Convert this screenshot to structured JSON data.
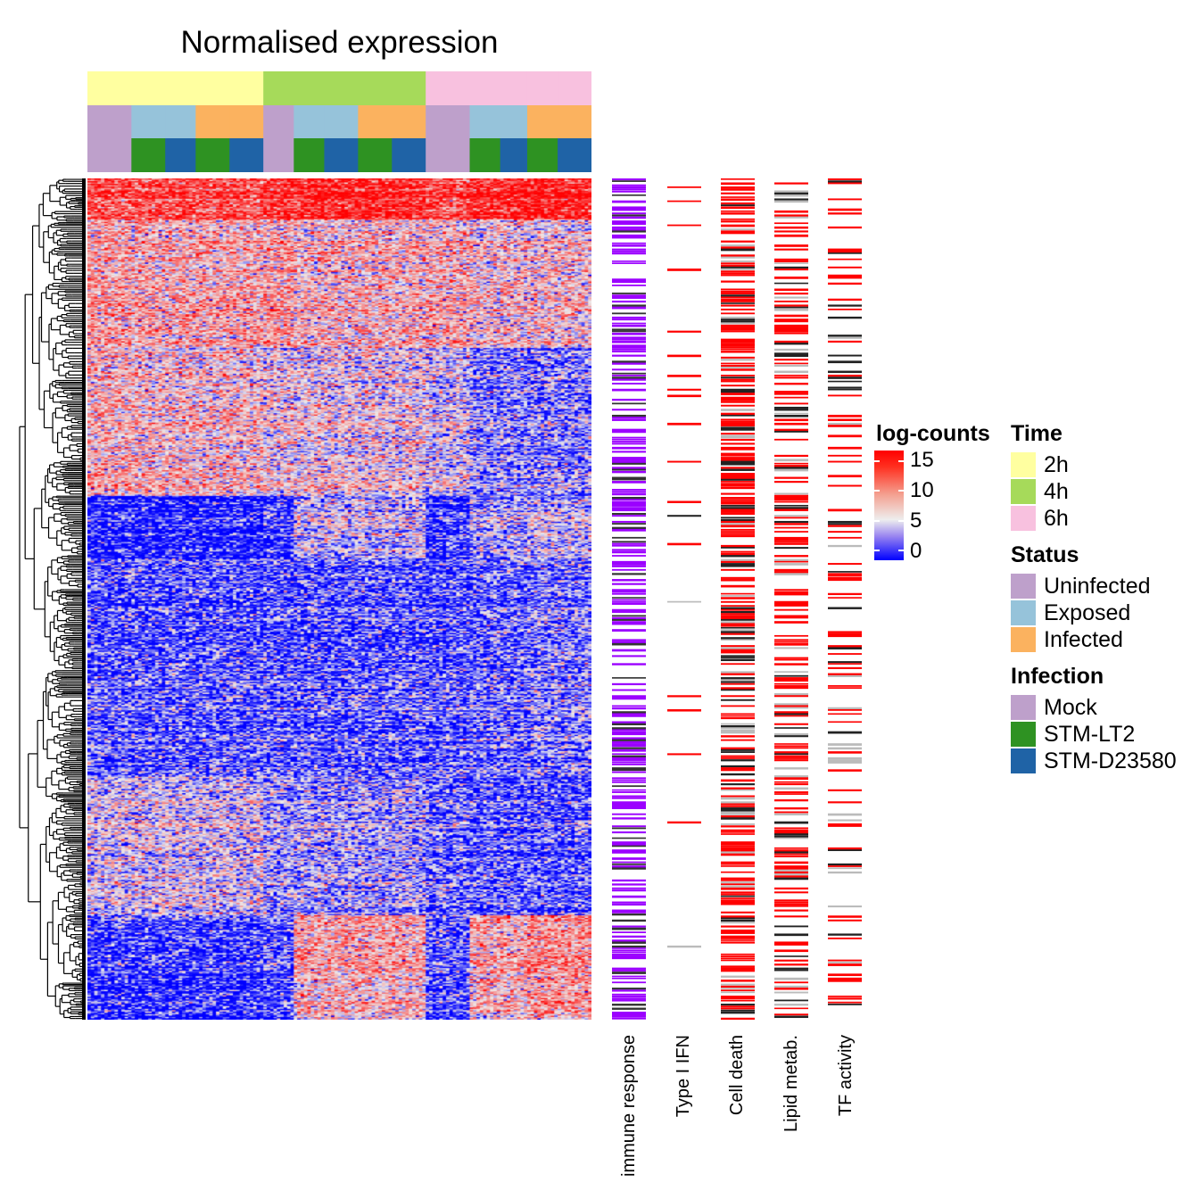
{
  "chart_data": {
    "type": "heatmap",
    "title": "Normalised expression",
    "color_scale": {
      "title": "log-counts",
      "ticks": [
        "15",
        "10",
        "5",
        "0"
      ],
      "range": [
        0,
        15
      ],
      "low": "#0000ff",
      "mid": "#eeeeee",
      "high": "#ff0000"
    },
    "column_groups": [
      {
        "time": "2h",
        "status": "Uninfected",
        "infection": "Mock",
        "n": 13
      },
      {
        "time": "2h",
        "status": "Exposed",
        "infection": "STM-LT2",
        "n": 10
      },
      {
        "time": "2h",
        "status": "Exposed",
        "infection": "STM-D23580",
        "n": 9
      },
      {
        "time": "2h",
        "status": "Infected",
        "infection": "STM-LT2",
        "n": 10
      },
      {
        "time": "2h",
        "status": "Infected",
        "infection": "STM-D23580",
        "n": 10
      },
      {
        "time": "4h",
        "status": "Uninfected",
        "infection": "Mock",
        "n": 9
      },
      {
        "time": "4h",
        "status": "Exposed",
        "infection": "STM-LT2",
        "n": 9
      },
      {
        "time": "4h",
        "status": "Exposed",
        "infection": "STM-D23580",
        "n": 10
      },
      {
        "time": "4h",
        "status": "Infected",
        "infection": "STM-LT2",
        "n": 10
      },
      {
        "time": "4h",
        "status": "Infected",
        "infection": "STM-D23580",
        "n": 10
      },
      {
        "time": "6h",
        "status": "Uninfected",
        "infection": "Mock",
        "n": 13
      },
      {
        "time": "6h",
        "status": "Exposed",
        "infection": "STM-LT2",
        "n": 9
      },
      {
        "time": "6h",
        "status": "Exposed",
        "infection": "STM-D23580",
        "n": 8
      },
      {
        "time": "6h",
        "status": "Infected",
        "infection": "STM-LT2",
        "n": 9
      },
      {
        "time": "6h",
        "status": "Infected",
        "infection": "STM-D23580",
        "n": 10
      }
    ],
    "row_clusters_mean_logcounts": {
      "order": [
        "2h Uninfected",
        "2h Exposed",
        "2h Infected",
        "4h Uninfected",
        "4h Exposed",
        "4h Infected",
        "6h Uninfected",
        "6h Exposed",
        "6h Infected"
      ],
      "clusters": [
        {
          "share": 0.048,
          "means": [
            12,
            12,
            12,
            13,
            14,
            14,
            12,
            14,
            14
          ]
        },
        {
          "share": 0.154,
          "means": [
            8.5,
            8,
            8,
            8.5,
            7.5,
            7.5,
            8,
            7,
            7
          ]
        },
        {
          "share": 0.175,
          "means": [
            7.5,
            7,
            7,
            6,
            6,
            6,
            5,
            3,
            3
          ]
        },
        {
          "share": 0.074,
          "means": [
            0.3,
            0.3,
            0.3,
            1,
            5,
            5,
            1,
            4,
            5
          ]
        },
        {
          "share": 0.26,
          "means": [
            2,
            2,
            2,
            2,
            2,
            2,
            2,
            2.5,
            3
          ]
        },
        {
          "share": 0.164,
          "means": [
            5.5,
            5.5,
            5.5,
            4,
            4,
            4,
            2.5,
            2,
            2
          ]
        },
        {
          "share": 0.125,
          "means": [
            1,
            1,
            1,
            2,
            8,
            8,
            2,
            8,
            9
          ]
        }
      ]
    },
    "row_annotations": [
      {
        "label": "immune response",
        "color": "#9b00ff",
        "density": 0.55
      },
      {
        "label": "Type I IFN",
        "color": "#ff0000",
        "density": 0.04
      },
      {
        "label": "Cell death",
        "color": "#ff0000",
        "density": 0.7
      },
      {
        "label": "Lipid metab.",
        "color": "#ff0000",
        "density": 0.45
      },
      {
        "label": "TF activity",
        "color": "#ff0000",
        "density": 0.22
      }
    ]
  },
  "legends": {
    "time": {
      "title": "Time",
      "items": [
        {
          "label": "2h",
          "color": "#ffffa0"
        },
        {
          "label": "4h",
          "color": "#a6da5a"
        },
        {
          "label": "6h",
          "color": "#f8c1df"
        }
      ]
    },
    "status": {
      "title": "Status",
      "items": [
        {
          "label": "Uninfected",
          "color": "#bea0cb"
        },
        {
          "label": "Exposed",
          "color": "#96c3da"
        },
        {
          "label": "Infected",
          "color": "#fbb25f"
        }
      ]
    },
    "infection": {
      "title": "Infection",
      "items": [
        {
          "label": "Mock",
          "color": "#bea0cb"
        },
        {
          "label": "STM-LT2",
          "color": "#2e9222"
        },
        {
          "label": "STM-D23580",
          "color": "#1f63a6"
        }
      ]
    }
  }
}
